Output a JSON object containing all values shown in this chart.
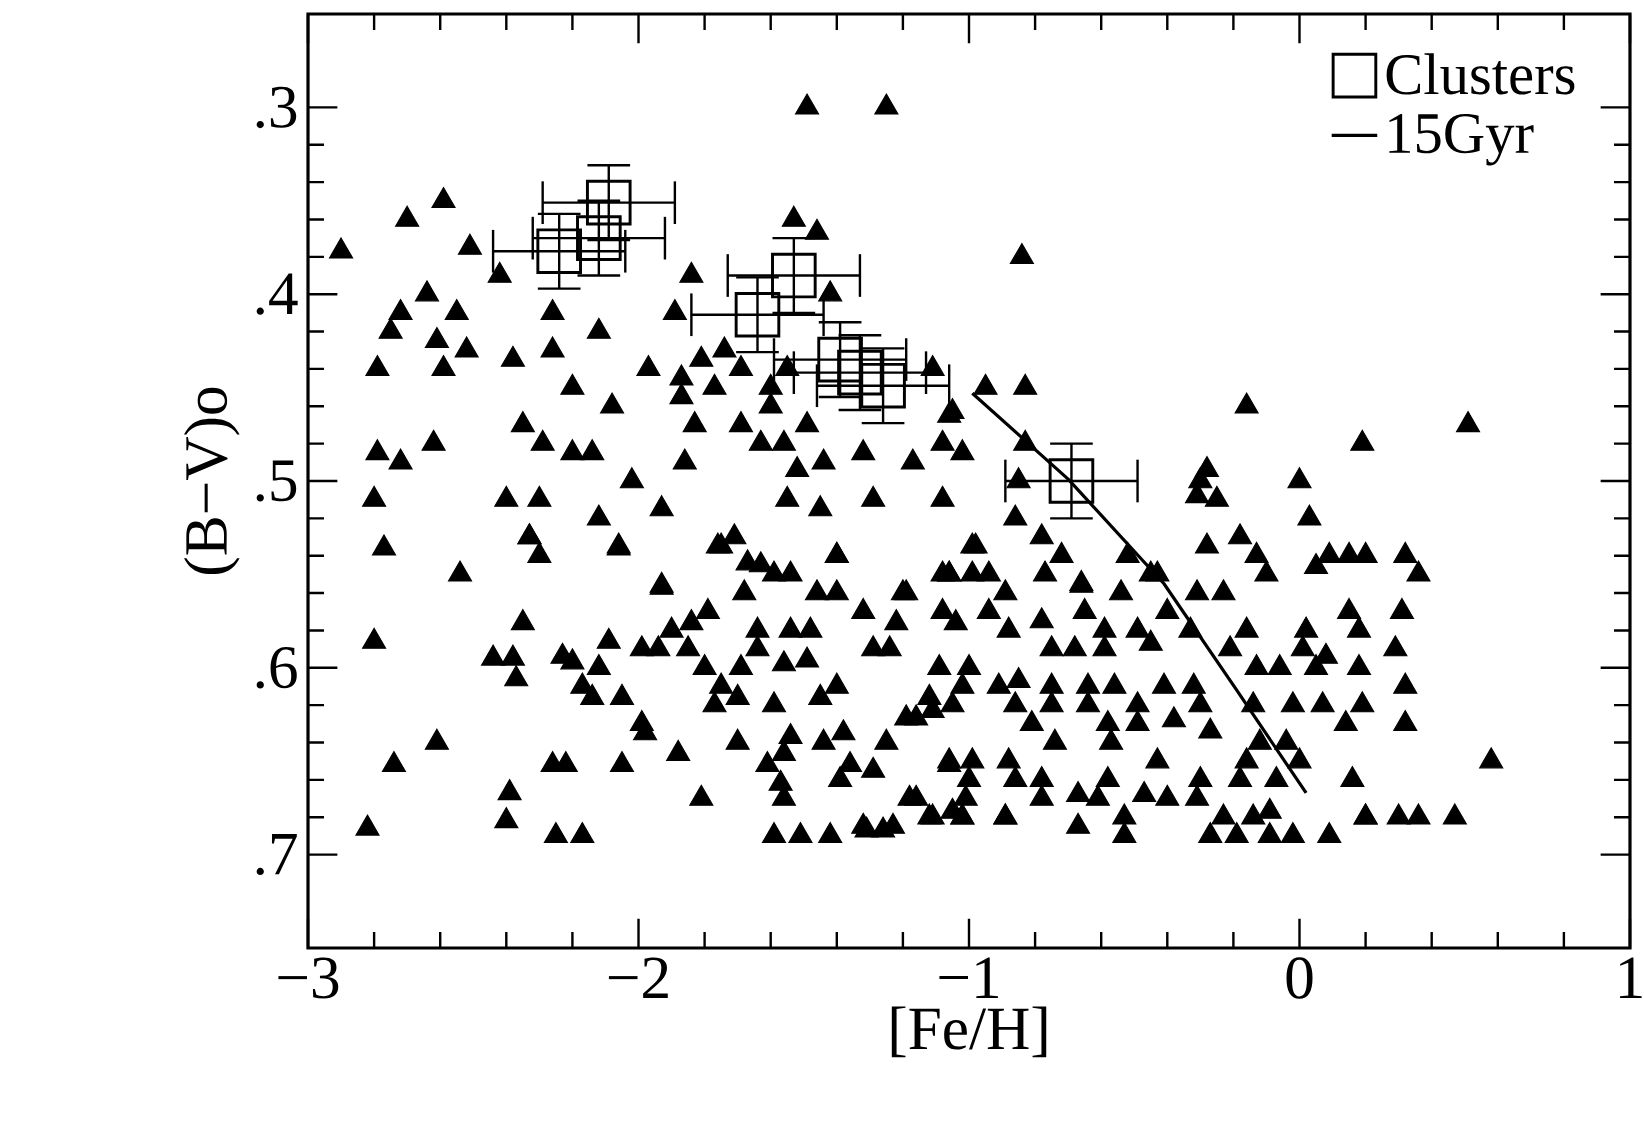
{
  "chart_data": {
    "type": "scatter",
    "xlabel": "[Fe/H]",
    "ylabel": "(B−V)o",
    "xlim": [
      -3,
      1
    ],
    "ylim": [
      0.75,
      0.25
    ],
    "xticks": [
      {
        "value": -3,
        "label": "−3"
      },
      {
        "value": -2,
        "label": "−2"
      },
      {
        "value": -1,
        "label": "−1"
      },
      0,
      1
    ],
    "yticks": [
      {
        "value": 0.3,
        "label": ".3"
      },
      {
        "value": 0.4,
        "label": ".4"
      },
      {
        "value": 0.5,
        "label": ".5"
      },
      {
        "value": 0.6,
        "label": ".6"
      },
      {
        "value": 0.7,
        "label": ".7"
      }
    ],
    "legend": "top right",
    "series": [
      {
        "type": "scatter",
        "marker": "triangle",
        "color": "#000000",
        "x": [
          -2.9,
          -1.49,
          -1.25,
          -0.84,
          -0.16,
          0.19,
          0.51,
          0.58,
          -2.82,
          -2.4,
          -2.25,
          -2.17,
          -1.59,
          -1.51,
          -1.42,
          -1.32,
          -1.23,
          -1.12,
          -1.02,
          -0.89,
          -0.67,
          -0.53,
          -0.27,
          -0.19,
          -0.09,
          -0.02,
          0.09,
          0.2,
          0.3,
          0.36,
          0.47,
          -2.7,
          -2.59,
          -2.51,
          -2.42,
          -2.64,
          -2.72,
          -2.75,
          -2.55,
          -2.61,
          -2.52,
          -2.79,
          -2.59,
          -2.38,
          -2.26,
          -2.12,
          -2.26,
          -2.2,
          -2.79,
          -2.72,
          -2.62,
          -2.8,
          -2.77,
          -2.54,
          -2.35,
          -2.29,
          -2.2,
          -2.14,
          -2.4,
          -2.3,
          -2.02,
          -2.12,
          -2.33,
          -2.06,
          -1.93,
          -1.93,
          -1.97,
          -2.08,
          -1.87,
          -1.87,
          -1.83,
          -1.86,
          -1.84,
          -1.89,
          -1.81,
          -1.74,
          -1.69,
          -1.77,
          -1.69,
          -1.63,
          -1.56,
          -1.6,
          -1.6,
          -1.49,
          -1.53,
          -1.46,
          -1.42,
          -1.55,
          -1.11,
          -0.95,
          -0.83,
          -1.06,
          -1.08,
          -1.02,
          -0.83,
          -0.85,
          -0.86,
          -0.78,
          -0.66,
          -0.98,
          -1.32,
          -1.17,
          -1.08,
          -1.29,
          -1.44,
          -1.52,
          -1.55,
          -1.45,
          -1.75,
          -1.67,
          -1.59,
          -1.4,
          -1.2,
          -1.06,
          -0.99,
          -0.52,
          -0.45,
          -0.28,
          -0.3,
          -1.05,
          -0.31,
          -0.25,
          0.0,
          0.03,
          -0.18,
          -0.28,
          0.09,
          0.15,
          0.2,
          0.32,
          0.36,
          0.05,
          -0.1,
          -0.13,
          -0.72,
          -0.99,
          -0.77,
          -0.66,
          -0.54,
          -0.43,
          -0.31,
          -0.23,
          -1.06,
          -0.94,
          -0.89,
          -1.04,
          -0.94,
          0.15,
          0.31,
          0.02,
          0.18,
          -0.16,
          -0.78,
          -0.88,
          -0.65,
          -0.59,
          -0.49,
          -0.4,
          -0.33,
          -0.75,
          -0.68,
          -0.59,
          -0.45,
          -0.21,
          0.01,
          0.08,
          0.29,
          -0.13,
          -0.06,
          0.05,
          0.18,
          0.32,
          -1.0,
          -1.02,
          -0.91,
          -0.85,
          -0.75,
          -0.64,
          -0.56,
          -0.41,
          -0.32,
          -1.05,
          -0.86,
          -0.75,
          -0.64,
          -0.49,
          -0.3,
          -0.02,
          0.07,
          0.19,
          -0.14,
          0.14,
          0.32,
          -0.81,
          -0.58,
          -0.49,
          -0.38,
          -0.27,
          -0.12,
          -0.04,
          -1.06,
          -0.99,
          -0.88,
          -0.74,
          -0.57,
          -0.43,
          -0.16,
          0.0,
          -1.0,
          -0.86,
          -0.78,
          -0.67,
          -0.58,
          -0.47,
          -0.3,
          -0.18,
          -0.07,
          0.16,
          -1.01,
          -0.78,
          -0.61,
          -0.4,
          -0.31,
          -0.23,
          -0.09,
          -1.02,
          -0.89,
          -0.53,
          -0.14,
          0.2,
          -2.8,
          -2.74,
          -2.61,
          -2.44,
          -2.38,
          -2.37,
          -2.35,
          -2.33,
          -2.3,
          -2.06,
          -1.93,
          -2.23,
          -2.2,
          -2.17,
          -2.14,
          -2.12,
          -2.09,
          -2.05,
          -1.99,
          -1.98,
          -2.05,
          -2.26,
          -2.22,
          -2.39,
          -1.99,
          -1.94,
          -1.9,
          -1.84,
          -1.79,
          -1.85,
          -1.8,
          -1.77,
          -1.75,
          -1.7,
          -1.69,
          -1.88,
          -1.81,
          -1.7,
          -1.76,
          -1.71,
          -1.68,
          -1.63,
          -1.54,
          -1.46,
          -1.4,
          -1.4,
          -1.32,
          -1.22,
          -1.19,
          -1.08,
          -1.64,
          -1.64,
          -1.54,
          -1.48,
          -1.56,
          -1.49,
          -1.29,
          -1.24,
          -1.4,
          -1.45,
          -1.59,
          -1.54,
          -1.56,
          -1.61,
          -1.57,
          -1.56,
          -1.44,
          -1.38,
          -1.36,
          -1.39,
          -1.29,
          -1.25,
          -1.19,
          -1.16,
          -1.11,
          -1.18,
          -1.16,
          -1.11,
          -1.05,
          -1.06,
          -1.09,
          -1.08,
          -1.12,
          -1.31,
          -1.26
        ],
        "values": [
          0.377,
          0.3,
          0.3,
          0.38,
          0.46,
          0.48,
          0.47,
          0.65,
          0.686,
          0.682,
          0.69,
          0.69,
          0.69,
          0.69,
          0.69,
          0.685,
          0.685,
          0.68,
          0.68,
          0.68,
          0.685,
          0.69,
          0.69,
          0.69,
          0.69,
          0.69,
          0.69,
          0.68,
          0.68,
          0.68,
          0.68,
          0.36,
          0.35,
          0.375,
          0.39,
          0.4,
          0.41,
          0.42,
          0.41,
          0.425,
          0.43,
          0.44,
          0.44,
          0.435,
          0.43,
          0.42,
          0.41,
          0.45,
          0.485,
          0.49,
          0.48,
          0.51,
          0.536,
          0.55,
          0.47,
          0.48,
          0.485,
          0.485,
          0.51,
          0.51,
          0.5,
          0.52,
          0.53,
          0.535,
          0.515,
          0.556,
          0.44,
          0.46,
          0.445,
          0.455,
          0.47,
          0.49,
          0.39,
          0.41,
          0.435,
          0.43,
          0.44,
          0.45,
          0.47,
          0.48,
          0.48,
          0.46,
          0.45,
          0.47,
          0.36,
          0.367,
          0.4,
          0.44,
          0.44,
          0.45,
          0.45,
          0.465,
          0.48,
          0.485,
          0.48,
          0.5,
          0.52,
          0.53,
          0.556,
          0.535,
          0.485,
          0.49,
          0.51,
          0.51,
          0.49,
          0.494,
          0.51,
          0.515,
          0.535,
          0.544,
          0.55,
          0.54,
          0.56,
          0.55,
          0.55,
          0.54,
          0.55,
          0.494,
          0.5,
          0.463,
          0.508,
          0.51,
          0.5,
          0.52,
          0.53,
          0.535,
          0.54,
          0.54,
          0.54,
          0.54,
          0.55,
          0.546,
          0.55,
          0.54,
          0.54,
          0.535,
          0.55,
          0.555,
          0.56,
          0.55,
          0.56,
          0.56,
          0.55,
          0.55,
          0.56,
          0.576,
          0.57,
          0.57,
          0.57,
          0.58,
          0.58,
          0.58,
          0.575,
          0.58,
          0.57,
          0.58,
          0.58,
          0.57,
          0.58,
          0.59,
          0.59,
          0.59,
          0.587,
          0.59,
          0.59,
          0.594,
          0.59,
          0.6,
          0.6,
          0.6,
          0.6,
          0.61,
          0.6,
          0.61,
          0.61,
          0.607,
          0.61,
          0.61,
          0.61,
          0.61,
          0.61,
          0.62,
          0.62,
          0.62,
          0.62,
          0.62,
          0.62,
          0.62,
          0.62,
          0.62,
          0.62,
          0.63,
          0.63,
          0.63,
          0.63,
          0.63,
          0.628,
          0.634,
          0.64,
          0.64,
          0.65,
          0.65,
          0.65,
          0.64,
          0.64,
          0.65,
          0.65,
          0.65,
          0.66,
          0.66,
          0.66,
          0.668,
          0.66,
          0.668,
          0.66,
          0.66,
          0.66,
          0.66,
          0.67,
          0.67,
          0.67,
          0.67,
          0.67,
          0.68,
          0.677,
          0.68,
          0.68,
          0.68,
          0.68,
          0.68,
          0.586,
          0.652,
          0.64,
          0.595,
          0.595,
          0.606,
          0.576,
          0.53,
          0.54,
          0.536,
          0.557,
          0.594,
          0.597,
          0.61,
          0.616,
          0.6,
          0.586,
          0.616,
          0.63,
          0.635,
          0.652,
          0.652,
          0.652,
          0.667,
          0.59,
          0.59,
          0.58,
          0.576,
          0.57,
          0.59,
          0.6,
          0.62,
          0.61,
          0.616,
          0.6,
          0.646,
          0.67,
          0.64,
          0.535,
          0.53,
          0.56,
          0.545,
          0.55,
          0.56,
          0.54,
          0.56,
          0.57,
          0.576,
          0.56,
          0.55,
          0.58,
          0.59,
          0.58,
          0.58,
          0.598,
          0.596,
          0.59,
          0.59,
          0.61,
          0.616,
          0.62,
          0.637,
          0.646,
          0.652,
          0.662,
          0.67,
          0.64,
          0.635,
          0.652,
          0.66,
          0.655,
          0.64,
          0.627,
          0.627,
          0.623,
          0.67,
          0.67,
          0.68,
          0.677,
          0.652,
          0.6,
          0.57,
          0.616,
          0.687,
          0.687
        ]
      },
      {
        "name": "Clusters",
        "type": "scatter",
        "marker": "square",
        "color": "#000000",
        "x": [
          -2.09,
          -2.12,
          -2.24,
          -1.53,
          -1.64,
          -1.39,
          -1.33,
          -1.26,
          -0.69
        ],
        "values": [
          0.351,
          0.37,
          0.377,
          0.39,
          0.411,
          0.435,
          0.442,
          0.449,
          0.5
        ],
        "errors": [
          0.02,
          0.02,
          0.02,
          0.02,
          0.02,
          0.02,
          0.02,
          0.02,
          0.02
        ],
        "xerrors": [
          0.2,
          0.2,
          0.2,
          0.2,
          0.2,
          0.2,
          0.2,
          0.2,
          0.2
        ]
      },
      {
        "name": "15Gyr",
        "type": "line",
        "marker": "none",
        "line_style": "solid",
        "color": "#000000",
        "x": [
          -0.99,
          -0.7,
          -0.41,
          -0.19,
          0.02
        ],
        "values": [
          0.453,
          0.499,
          0.555,
          0.612,
          0.667
        ]
      }
    ]
  }
}
